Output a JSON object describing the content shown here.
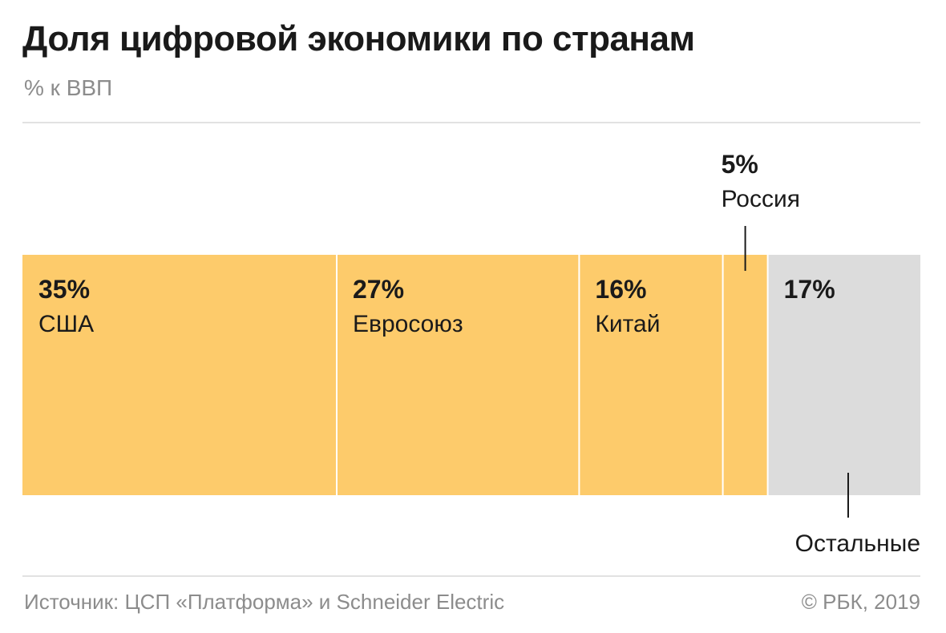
{
  "title": "Доля цифровой экономики по странам",
  "subtitle": "% к ВВП",
  "footer": {
    "source": "Источник: ЦСП «Платформа» и Schneider Electric",
    "copyright": "© РБК, 2019"
  },
  "colors": {
    "highlight": "#fdcb6b",
    "other": "#dcdcdc",
    "text": "#1a1a1a",
    "muted": "#8c8c8c",
    "rule": "#e2e2e2"
  },
  "chart_data": {
    "type": "bar",
    "orientation": "horizontal-stacked",
    "unit": "%",
    "categories": [
      "США",
      "Евросоюз",
      "Китай",
      "Россия",
      "Остальные"
    ],
    "values": [
      35,
      27,
      16,
      5,
      17
    ],
    "value_labels": [
      "35%",
      "27%",
      "16%",
      "5%",
      "17%"
    ],
    "series_colors": [
      "#fdcb6b",
      "#fdcb6b",
      "#fdcb6b",
      "#fdcb6b",
      "#dcdcdc"
    ],
    "callouts": {
      "Россия": "above",
      "Остальные": "below"
    },
    "legend": "none",
    "grid": false
  }
}
